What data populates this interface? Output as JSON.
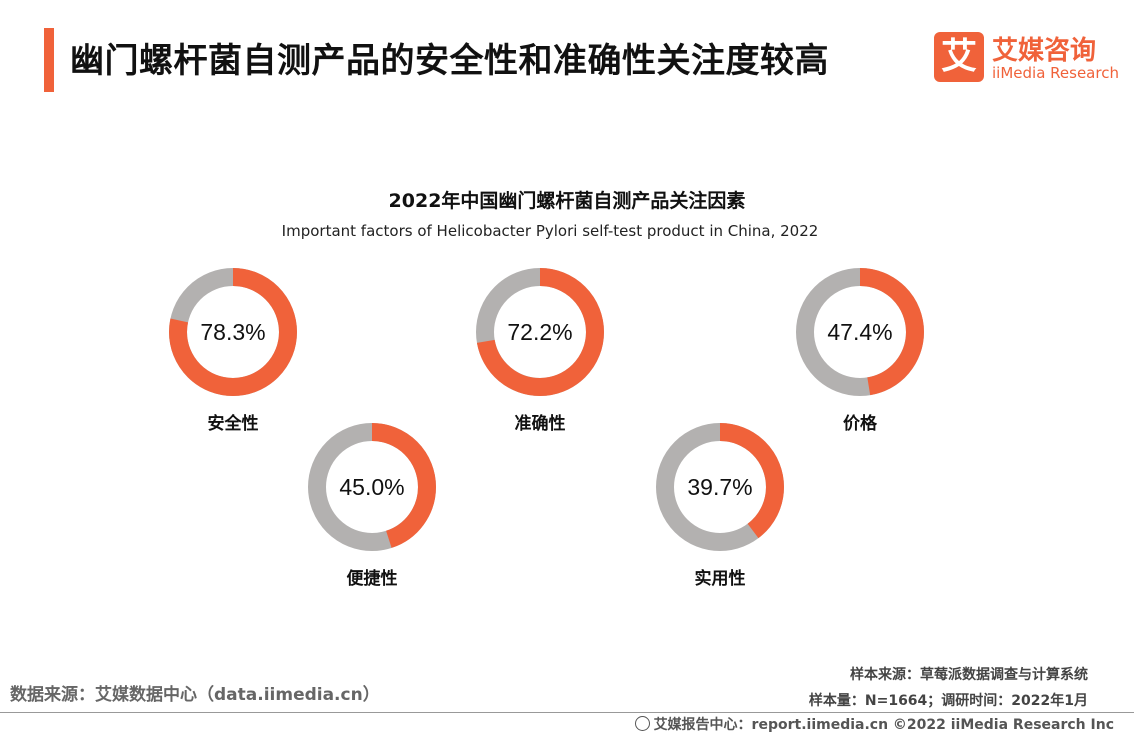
{
  "header": {
    "title": "幽门螺杆菌自测产品的安全性和准确性关注度较高",
    "logo_cn": "艾媒咨询",
    "logo_en": "iiMedia Research",
    "logo_mark": "艾"
  },
  "colors": {
    "accent": "#f0623a",
    "remainder": "#b3b1b0"
  },
  "chart_data": {
    "type": "pie",
    "variant": "donut",
    "title": "2022年中国幽门螺杆菌自测产品关注因素",
    "subtitle": "Important factors of Helicobacter Pylori self-test product in China, 2022",
    "categories": [
      "安全性",
      "准确性",
      "价格",
      "便捷性",
      "实用性"
    ],
    "values": [
      78.3,
      72.2,
      47.4,
      45.0,
      39.7
    ],
    "labels": [
      "78.3%",
      "72.2%",
      "47.4%",
      "45.0%",
      "39.7%"
    ],
    "unit": "%"
  },
  "source": {
    "data_source": "数据来源：艾媒数据中心（data.iimedia.cn）",
    "sample_source": "样本来源：草莓派数据调查与计算系统",
    "sample_info": "样本量：N=1664；调研时间：2022年1月"
  },
  "footer": {
    "text": "艾媒报告中心：report.iimedia.cn   ©2022 iiMedia Research Inc"
  }
}
